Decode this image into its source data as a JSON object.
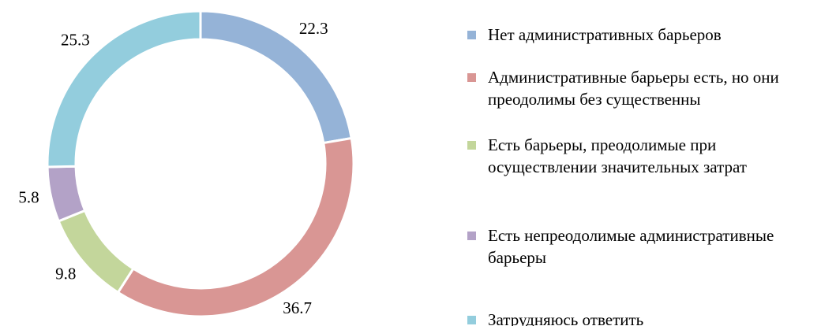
{
  "chart_data": {
    "type": "donut",
    "categories": [
      "Нет административных барьеров",
      "Административные барьеры есть, но они преодолимы без существенны",
      "Есть барьеры, преодолимые при осуществлении значительных затрат",
      "Есть непреодолимые административные барьеры",
      "Затрудняюсь ответить"
    ],
    "values": [
      22.3,
      36.7,
      9.8,
      5.8,
      25.3
    ],
    "colors": [
      "#95b3d7",
      "#d99694",
      "#c3d69b",
      "#b3a2c7",
      "#93cddd"
    ],
    "legend": "right"
  }
}
